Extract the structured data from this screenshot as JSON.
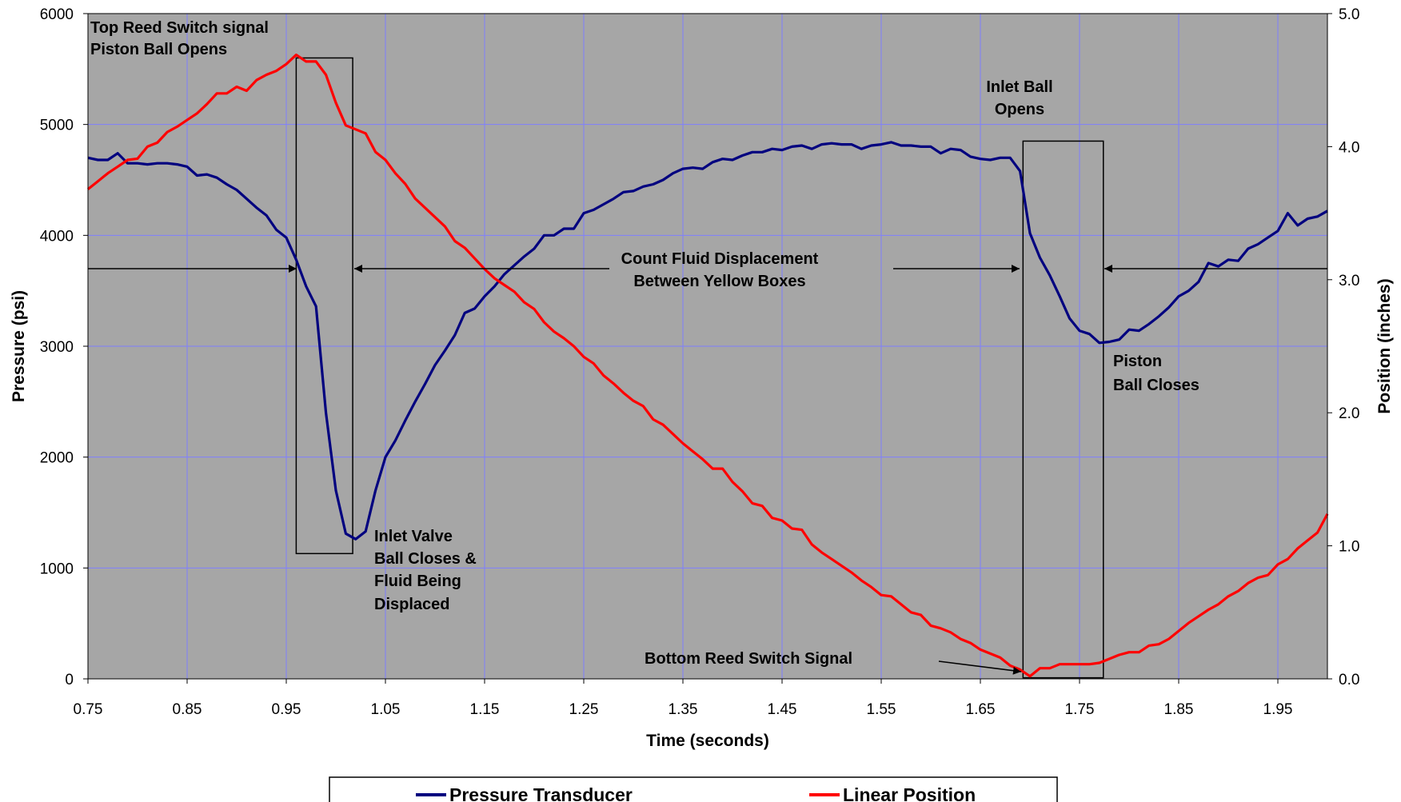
{
  "chart_data": {
    "type": "line",
    "xlabel": "Time (seconds)",
    "ylabel_left": "Pressure (psi)",
    "ylabel_right": "Position (inches)",
    "xlim": [
      0.75,
      2.0
    ],
    "ylim_left": [
      0,
      6000
    ],
    "ylim_right": [
      0,
      5.0
    ],
    "grid": true,
    "background_color": "#a6a6a6",
    "grid_color": "#7f7fff",
    "x_ticks": [
      0.75,
      0.85,
      0.95,
      1.05,
      1.15,
      1.25,
      1.35,
      1.45,
      1.55,
      1.65,
      1.75,
      1.85,
      1.95
    ],
    "x_tick_labels": [
      "0.75",
      "0.85",
      "0.95",
      "1.05",
      "1.15",
      "1.25",
      "1.35",
      "1.45",
      "1.55",
      "1.65",
      "1.75",
      "1.85",
      "1.95"
    ],
    "y_left_ticks": [
      0,
      1000,
      2000,
      3000,
      4000,
      5000,
      6000
    ],
    "y_left_tick_labels": [
      "0",
      "1000",
      "2000",
      "3000",
      "4000",
      "5000",
      "6000"
    ],
    "y_right_ticks": [
      0,
      1,
      2,
      3,
      4,
      5
    ],
    "y_right_tick_labels": [
      "0.0",
      "1.0",
      "2.0",
      "3.0",
      "4.0",
      "5.0"
    ],
    "legend_position": "bottom",
    "series": [
      {
        "name": "Pressure Transducer",
        "axis": "left",
        "color": "#00007f",
        "points": [
          [
            0.75,
            4700
          ],
          [
            0.76,
            4680
          ],
          [
            0.77,
            4680
          ],
          [
            0.78,
            4740
          ],
          [
            0.79,
            4650
          ],
          [
            0.8,
            4650
          ],
          [
            0.81,
            4640
          ],
          [
            0.82,
            4650
          ],
          [
            0.83,
            4650
          ],
          [
            0.84,
            4640
          ],
          [
            0.85,
            4620
          ],
          [
            0.86,
            4540
          ],
          [
            0.87,
            4550
          ],
          [
            0.88,
            4520
          ],
          [
            0.89,
            4460
          ],
          [
            0.9,
            4410
          ],
          [
            0.91,
            4330
          ],
          [
            0.92,
            4250
          ],
          [
            0.93,
            4180
          ],
          [
            0.94,
            4050
          ],
          [
            0.95,
            3980
          ],
          [
            0.96,
            3780
          ],
          [
            0.97,
            3540
          ],
          [
            0.98,
            3360
          ],
          [
            0.99,
            2400
          ],
          [
            1.0,
            1700
          ],
          [
            1.01,
            1310
          ],
          [
            1.02,
            1260
          ],
          [
            1.03,
            1330
          ],
          [
            1.04,
            1700
          ],
          [
            1.05,
            2000
          ],
          [
            1.06,
            2150
          ],
          [
            1.07,
            2330
          ],
          [
            1.08,
            2500
          ],
          [
            1.09,
            2660
          ],
          [
            1.1,
            2830
          ],
          [
            1.11,
            2960
          ],
          [
            1.12,
            3100
          ],
          [
            1.13,
            3300
          ],
          [
            1.14,
            3340
          ],
          [
            1.15,
            3450
          ],
          [
            1.16,
            3540
          ],
          [
            1.17,
            3650
          ],
          [
            1.18,
            3730
          ],
          [
            1.19,
            3810
          ],
          [
            1.2,
            3880
          ],
          [
            1.21,
            4000
          ],
          [
            1.22,
            4000
          ],
          [
            1.23,
            4060
          ],
          [
            1.24,
            4060
          ],
          [
            1.25,
            4200
          ],
          [
            1.26,
            4230
          ],
          [
            1.27,
            4280
          ],
          [
            1.28,
            4330
          ],
          [
            1.29,
            4390
          ],
          [
            1.3,
            4400
          ],
          [
            1.31,
            4440
          ],
          [
            1.32,
            4460
          ],
          [
            1.33,
            4500
          ],
          [
            1.34,
            4560
          ],
          [
            1.35,
            4600
          ],
          [
            1.36,
            4610
          ],
          [
            1.37,
            4600
          ],
          [
            1.38,
            4660
          ],
          [
            1.39,
            4690
          ],
          [
            1.4,
            4680
          ],
          [
            1.41,
            4720
          ],
          [
            1.42,
            4750
          ],
          [
            1.43,
            4750
          ],
          [
            1.44,
            4780
          ],
          [
            1.45,
            4770
          ],
          [
            1.46,
            4800
          ],
          [
            1.47,
            4810
          ],
          [
            1.48,
            4780
          ],
          [
            1.49,
            4820
          ],
          [
            1.5,
            4830
          ],
          [
            1.51,
            4820
          ],
          [
            1.52,
            4820
          ],
          [
            1.53,
            4780
          ],
          [
            1.54,
            4810
          ],
          [
            1.55,
            4820
          ],
          [
            1.56,
            4840
          ],
          [
            1.57,
            4810
          ],
          [
            1.58,
            4810
          ],
          [
            1.59,
            4800
          ],
          [
            1.6,
            4800
          ],
          [
            1.61,
            4740
          ],
          [
            1.62,
            4780
          ],
          [
            1.63,
            4770
          ],
          [
            1.64,
            4710
          ],
          [
            1.65,
            4690
          ],
          [
            1.66,
            4680
          ],
          [
            1.67,
            4700
          ],
          [
            1.68,
            4700
          ],
          [
            1.69,
            4580
          ],
          [
            1.7,
            4020
          ],
          [
            1.71,
            3800
          ],
          [
            1.72,
            3640
          ],
          [
            1.73,
            3450
          ],
          [
            1.74,
            3250
          ],
          [
            1.75,
            3140
          ],
          [
            1.76,
            3110
          ],
          [
            1.77,
            3030
          ],
          [
            1.78,
            3040
          ],
          [
            1.79,
            3060
          ],
          [
            1.8,
            3150
          ],
          [
            1.81,
            3140
          ],
          [
            1.82,
            3200
          ],
          [
            1.83,
            3270
          ],
          [
            1.84,
            3350
          ],
          [
            1.85,
            3450
          ],
          [
            1.86,
            3500
          ],
          [
            1.87,
            3580
          ],
          [
            1.88,
            3750
          ],
          [
            1.89,
            3720
          ],
          [
            1.9,
            3780
          ],
          [
            1.91,
            3770
          ],
          [
            1.92,
            3880
          ],
          [
            1.93,
            3920
          ],
          [
            1.94,
            3980
          ],
          [
            1.95,
            4040
          ],
          [
            1.96,
            4200
          ],
          [
            1.97,
            4090
          ],
          [
            1.98,
            4150
          ],
          [
            1.99,
            4170
          ],
          [
            2.0,
            4220
          ]
        ]
      },
      {
        "name": "Linear Position",
        "axis": "right",
        "color": "#ff0000",
        "points": [
          [
            0.75,
            3.68
          ],
          [
            0.76,
            3.74
          ],
          [
            0.77,
            3.8
          ],
          [
            0.78,
            3.85
          ],
          [
            0.79,
            3.9
          ],
          [
            0.8,
            3.91
          ],
          [
            0.81,
            4.0
          ],
          [
            0.82,
            4.03
          ],
          [
            0.83,
            4.11
          ],
          [
            0.84,
            4.15
          ],
          [
            0.85,
            4.2
          ],
          [
            0.86,
            4.25
          ],
          [
            0.87,
            4.32
          ],
          [
            0.88,
            4.4
          ],
          [
            0.89,
            4.4
          ],
          [
            0.9,
            4.45
          ],
          [
            0.91,
            4.42
          ],
          [
            0.92,
            4.5
          ],
          [
            0.93,
            4.54
          ],
          [
            0.94,
            4.57
          ],
          [
            0.95,
            4.62
          ],
          [
            0.96,
            4.69
          ],
          [
            0.97,
            4.64
          ],
          [
            0.98,
            4.64
          ],
          [
            0.99,
            4.54
          ],
          [
            1.0,
            4.33
          ],
          [
            1.01,
            4.16
          ],
          [
            1.02,
            4.13
          ],
          [
            1.03,
            4.1
          ],
          [
            1.04,
            3.96
          ],
          [
            1.05,
            3.9
          ],
          [
            1.06,
            3.8
          ],
          [
            1.07,
            3.72
          ],
          [
            1.08,
            3.61
          ],
          [
            1.09,
            3.54
          ],
          [
            1.1,
            3.47
          ],
          [
            1.11,
            3.4
          ],
          [
            1.12,
            3.29
          ],
          [
            1.13,
            3.24
          ],
          [
            1.14,
            3.16
          ],
          [
            1.15,
            3.08
          ],
          [
            1.16,
            3.01
          ],
          [
            1.17,
            2.96
          ],
          [
            1.18,
            2.91
          ],
          [
            1.19,
            2.83
          ],
          [
            1.2,
            2.78
          ],
          [
            1.21,
            2.68
          ],
          [
            1.22,
            2.61
          ],
          [
            1.23,
            2.56
          ],
          [
            1.24,
            2.5
          ],
          [
            1.25,
            2.42
          ],
          [
            1.26,
            2.37
          ],
          [
            1.27,
            2.28
          ],
          [
            1.28,
            2.22
          ],
          [
            1.29,
            2.15
          ],
          [
            1.3,
            2.09
          ],
          [
            1.31,
            2.05
          ],
          [
            1.32,
            1.95
          ],
          [
            1.33,
            1.91
          ],
          [
            1.34,
            1.84
          ],
          [
            1.35,
            1.77
          ],
          [
            1.36,
            1.71
          ],
          [
            1.37,
            1.65
          ],
          [
            1.38,
            1.58
          ],
          [
            1.39,
            1.58
          ],
          [
            1.4,
            1.48
          ],
          [
            1.41,
            1.41
          ],
          [
            1.42,
            1.32
          ],
          [
            1.43,
            1.3
          ],
          [
            1.44,
            1.21
          ],
          [
            1.45,
            1.19
          ],
          [
            1.46,
            1.13
          ],
          [
            1.47,
            1.12
          ],
          [
            1.48,
            1.01
          ],
          [
            1.49,
            0.95
          ],
          [
            1.5,
            0.9
          ],
          [
            1.51,
            0.85
          ],
          [
            1.52,
            0.8
          ],
          [
            1.53,
            0.74
          ],
          [
            1.54,
            0.69
          ],
          [
            1.55,
            0.63
          ],
          [
            1.56,
            0.62
          ],
          [
            1.57,
            0.56
          ],
          [
            1.58,
            0.5
          ],
          [
            1.59,
            0.48
          ],
          [
            1.6,
            0.4
          ],
          [
            1.61,
            0.38
          ],
          [
            1.62,
            0.35
          ],
          [
            1.63,
            0.3
          ],
          [
            1.64,
            0.27
          ],
          [
            1.65,
            0.22
          ],
          [
            1.66,
            0.19
          ],
          [
            1.67,
            0.16
          ],
          [
            1.68,
            0.1
          ],
          [
            1.69,
            0.07
          ],
          [
            1.7,
            0.02
          ],
          [
            1.71,
            0.08
          ],
          [
            1.72,
            0.08
          ],
          [
            1.73,
            0.11
          ],
          [
            1.74,
            0.11
          ],
          [
            1.75,
            0.11
          ],
          [
            1.76,
            0.11
          ],
          [
            1.77,
            0.12
          ],
          [
            1.78,
            0.15
          ],
          [
            1.79,
            0.18
          ],
          [
            1.8,
            0.2
          ],
          [
            1.81,
            0.2
          ],
          [
            1.82,
            0.25
          ],
          [
            1.83,
            0.26
          ],
          [
            1.84,
            0.3
          ],
          [
            1.85,
            0.36
          ],
          [
            1.86,
            0.42
          ],
          [
            1.87,
            0.47
          ],
          [
            1.88,
            0.52
          ],
          [
            1.89,
            0.56
          ],
          [
            1.9,
            0.62
          ],
          [
            1.91,
            0.66
          ],
          [
            1.92,
            0.72
          ],
          [
            1.93,
            0.76
          ],
          [
            1.94,
            0.78
          ],
          [
            1.95,
            0.86
          ],
          [
            1.96,
            0.9
          ],
          [
            1.97,
            0.98
          ],
          [
            1.98,
            1.04
          ],
          [
            1.99,
            1.1
          ],
          [
            2.0,
            1.24
          ]
        ]
      }
    ],
    "boxes": [
      {
        "name": "top-reed-switch-box",
        "x0": 0.96,
        "x1": 1.017,
        "y0_left": 1130,
        "y1_left": 5600
      },
      {
        "name": "bottom-reed-switch-box",
        "x0": 1.693,
        "x1": 1.774,
        "y0_left": 10,
        "y1_left": 4850
      }
    ],
    "annotations": {
      "top_reed": [
        "Top Reed Switch signal",
        "Piston Ball Opens"
      ],
      "inlet_valve": [
        "Inlet Valve",
        "Ball Closes &",
        "Fluid Being",
        "Displaced"
      ],
      "count_fluid": [
        "Count Fluid Displacement",
        "Between Yellow Boxes"
      ],
      "inlet_ball_opens": [
        "Inlet Ball",
        "Opens"
      ],
      "piston_ball_closes": [
        "Piston",
        "Ball Closes"
      ],
      "bottom_reed": "Bottom Reed Switch Signal"
    }
  }
}
